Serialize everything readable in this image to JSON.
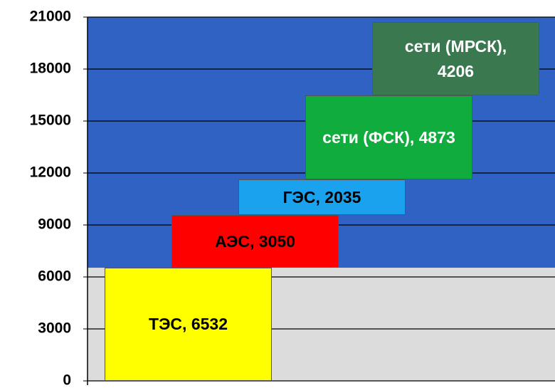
{
  "chart_data": {
    "type": "waterfall",
    "values": [
      6532,
      3050,
      2035,
      4873,
      4206
    ],
    "value_labels": [
      "ТЭС, 6532",
      "АЭС, 3050",
      "ГЭС, 2035",
      "сети (ФСК), 4873",
      "сети (МРСК), 4206"
    ],
    "colors": [
      "#ffff00",
      "#ff0000",
      "#1aa2ef",
      "#10ad3e",
      "#3a7850"
    ],
    "ylim": [
      0,
      21000
    ],
    "yticks": [
      0,
      3000,
      6000,
      9000,
      12000,
      15000,
      18000,
      21000
    ],
    "grid": true
  }
}
